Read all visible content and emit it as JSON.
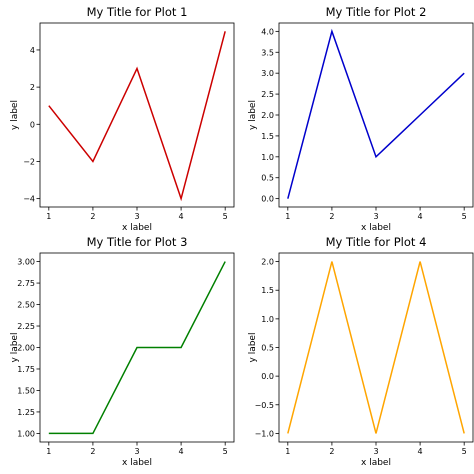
{
  "chart_data": [
    {
      "type": "line",
      "title": "My Title for Plot 1",
      "xlabel": "x label",
      "ylabel": "y label",
      "x": [
        1,
        2,
        3,
        4,
        5
      ],
      "series": [
        {
          "values": [
            1,
            -2,
            3,
            -4,
            5
          ],
          "color": "#cc0000"
        }
      ],
      "xticks": [
        1,
        2,
        3,
        4,
        5
      ],
      "xtick_labels": [
        "1",
        "2",
        "3",
        "4",
        "5"
      ],
      "yticks": [
        -4,
        -2,
        0,
        2,
        4
      ],
      "ytick_labels": [
        "−4",
        "−2",
        "0",
        "2",
        "4"
      ],
      "xlim": [
        0.8,
        5.2
      ],
      "ylim": [
        -4.45,
        5.45
      ],
      "grid": false
    },
    {
      "type": "line",
      "title": "My Title for Plot 2",
      "xlabel": "x label",
      "ylabel": "y label",
      "x": [
        1,
        2,
        3,
        4,
        5
      ],
      "series": [
        {
          "values": [
            0,
            4,
            1,
            2,
            3
          ],
          "color": "#0000cc"
        }
      ],
      "xticks": [
        1,
        2,
        3,
        4,
        5
      ],
      "xtick_labels": [
        "1",
        "2",
        "3",
        "4",
        "5"
      ],
      "yticks": [
        0,
        0.5,
        1,
        1.5,
        2,
        2.5,
        3,
        3.5,
        4
      ],
      "ytick_labels": [
        "0.0",
        "0.5",
        "1.0",
        "1.5",
        "2.0",
        "2.5",
        "3.0",
        "3.5",
        "4.0"
      ],
      "xlim": [
        0.8,
        5.2
      ],
      "ylim": [
        -0.2,
        4.2
      ],
      "grid": false
    },
    {
      "type": "line",
      "title": "My Title for Plot 3",
      "xlabel": "x label",
      "ylabel": "y label",
      "x": [
        1,
        2,
        3,
        4,
        5
      ],
      "series": [
        {
          "values": [
            1,
            1,
            2,
            2,
            3
          ],
          "color": "#008000"
        }
      ],
      "xticks": [
        1,
        2,
        3,
        4,
        5
      ],
      "xtick_labels": [
        "1",
        "2",
        "3",
        "4",
        "5"
      ],
      "yticks": [
        1,
        1.25,
        1.5,
        1.75,
        2,
        2.25,
        2.5,
        2.75,
        3
      ],
      "ytick_labels": [
        "1.00",
        "1.25",
        "1.50",
        "1.75",
        "2.00",
        "2.25",
        "2.50",
        "2.75",
        "3.00"
      ],
      "xlim": [
        0.8,
        5.2
      ],
      "ylim": [
        0.9,
        3.1
      ],
      "grid": false
    },
    {
      "type": "line",
      "title": "My Title for Plot 4",
      "xlabel": "x label",
      "ylabel": "y label",
      "x": [
        1,
        2,
        3,
        4,
        5
      ],
      "series": [
        {
          "values": [
            -1,
            2,
            -1,
            2,
            -1
          ],
          "color": "#ffa500"
        }
      ],
      "xticks": [
        1,
        2,
        3,
        4,
        5
      ],
      "xtick_labels": [
        "1",
        "2",
        "3",
        "4",
        "5"
      ],
      "yticks": [
        -1,
        -0.5,
        0,
        0.5,
        1,
        1.5,
        2
      ],
      "ytick_labels": [
        "−1.0",
        "−0.5",
        "0.0",
        "0.5",
        "1.0",
        "1.5",
        "2.0"
      ],
      "xlim": [
        0.8,
        5.2
      ],
      "ylim": [
        -1.15,
        2.15
      ],
      "grid": false
    }
  ]
}
